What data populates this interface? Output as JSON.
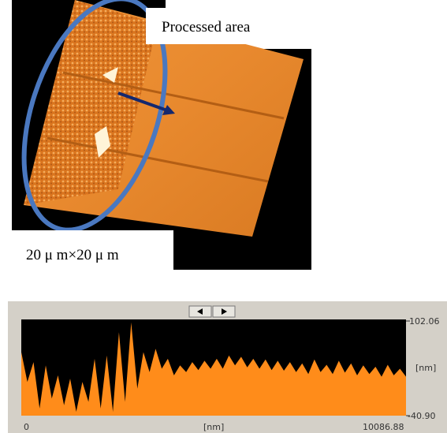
{
  "image": {
    "label": "Processed area",
    "scan_size": "20 μ m×20 μ m"
  },
  "profile": {
    "type": "area",
    "color": "#ff8c1a",
    "xlim": [
      0,
      10086.88
    ],
    "ylim": [
      -40.9,
      102.06
    ],
    "x_start_label": "0",
    "x_end_label": "10086.88",
    "x_unit": "[nm]",
    "y_top_label": "102.06",
    "y_bottom_label": "-40.90",
    "y_unit": "[nm]",
    "values": [
      55,
      10,
      40,
      -30,
      35,
      -15,
      20,
      -25,
      15,
      -35,
      10,
      -20,
      45,
      -30,
      50,
      -35,
      85,
      -20,
      100,
      0,
      55,
      25,
      60,
      30,
      45,
      20,
      35,
      25,
      40,
      28,
      42,
      30,
      45,
      30,
      50,
      35,
      48,
      32,
      45,
      30,
      44,
      28,
      42,
      27,
      40,
      25,
      38,
      22,
      44,
      25,
      36,
      22,
      42,
      24,
      38,
      20,
      35,
      22,
      33,
      18,
      36,
      20,
      30,
      18
    ]
  }
}
